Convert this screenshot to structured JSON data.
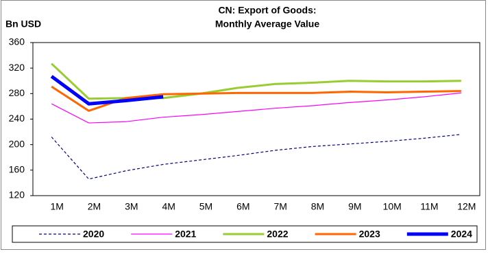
{
  "chart_data": {
    "type": "line",
    "title": [
      "CN: Export of Goods:",
      "Monthly Average Value"
    ],
    "y_label": "Bn USD",
    "categories": [
      "1M",
      "2M",
      "3M",
      "4M",
      "5M",
      "6M",
      "7M",
      "8M",
      "9M",
      "10M",
      "11M",
      "12M"
    ],
    "series": [
      {
        "name": "2020",
        "color": "#000080",
        "width": 1.2,
        "dashed": true,
        "values": [
          212,
          146,
          159,
          169,
          176,
          183,
          191,
          197,
          201,
          205,
          210,
          216
        ]
      },
      {
        "name": "2021",
        "color": "#ff00ff",
        "width": 1.2,
        "dashed": false,
        "values": [
          264,
          234,
          236,
          243,
          247,
          252,
          257,
          261,
          266,
          270,
          275,
          281
        ]
      },
      {
        "name": "2022",
        "color": "#99cc33",
        "width": 3,
        "dashed": false,
        "values": [
          327,
          272,
          273,
          273,
          280,
          289,
          295,
          297,
          300,
          299,
          299,
          300
        ]
      },
      {
        "name": "2023",
        "color": "#ff6600",
        "width": 3,
        "dashed": false,
        "values": [
          291,
          253,
          273,
          279,
          280,
          281,
          281,
          281,
          283,
          282,
          283,
          284
        ]
      },
      {
        "name": "2024",
        "color": "#0000ff",
        "width": 5,
        "dashed": false,
        "values": [
          307,
          264,
          269,
          275,
          null,
          null,
          null,
          null,
          null,
          null,
          null,
          null
        ]
      }
    ],
    "ylim": [
      120,
      360
    ],
    "yticks": [
      120,
      160,
      200,
      240,
      280,
      320,
      360
    ],
    "grid": false,
    "legend": "bottom"
  }
}
